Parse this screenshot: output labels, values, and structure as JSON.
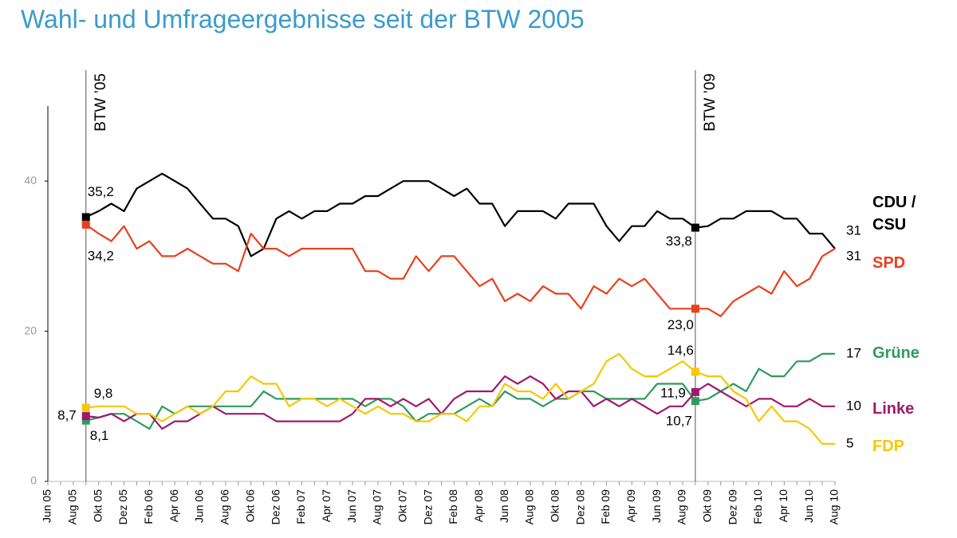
{
  "chart_data": {
    "type": "line",
    "title": "Wahl- und Umfrageergebnisse seit der BTW 2005",
    "categories": [
      "Jun 05",
      null,
      "Aug 05",
      null,
      "Okt 05",
      null,
      "Dez 05",
      null,
      "Feb 06",
      null,
      "Apr 06",
      null,
      "Jun 06",
      null,
      "Aug 06",
      null,
      "Okt 06",
      null,
      "Dez 06",
      null,
      "Feb 07",
      null,
      "Apr 07",
      null,
      "Jun 07",
      null,
      "Aug 07",
      null,
      "Okt 07",
      null,
      "Dez 07",
      null,
      "Feb 08",
      null,
      "Apr 08",
      null,
      "Jun 08",
      null,
      "Aug 08",
      null,
      "Okt 08",
      null,
      "Dez 08",
      null,
      "Feb 09",
      null,
      "Apr 09",
      null,
      "Jun 09",
      null,
      "Aug 09",
      null,
      "Okt 09",
      null,
      "Dez 09",
      null,
      "Feb 10",
      null,
      "Apr 10",
      null,
      "Jun 10",
      null,
      "Aug 10"
    ],
    "ylim": [
      0,
      50
    ],
    "yticks": [
      0,
      20,
      40
    ],
    "events": [
      {
        "label": "BTW ’05",
        "at": 3
      },
      {
        "label": "BTW ’09",
        "at": 51
      }
    ],
    "series": [
      {
        "name": "CDU / CSU",
        "color": "#000000",
        "values": [
          null,
          null,
          null,
          35.2,
          36,
          37,
          36,
          39,
          40,
          41,
          40,
          39,
          37,
          35,
          35,
          34,
          30,
          31,
          35,
          36,
          35,
          36,
          36,
          37,
          37,
          38,
          38,
          39,
          40,
          40,
          40,
          39,
          38,
          39,
          37,
          37,
          34,
          36,
          36,
          36,
          35,
          37,
          37,
          37,
          34,
          32,
          34,
          34,
          36,
          35,
          35,
          33.8,
          34,
          35,
          35,
          36,
          36,
          36,
          35,
          35,
          33,
          33,
          31
        ],
        "value_labels": [
          null,
          null,
          null,
          "35,2",
          null,
          null,
          null,
          null,
          null,
          null,
          null,
          null,
          null,
          null,
          null,
          null,
          null,
          null,
          null,
          null,
          null,
          null,
          null,
          null,
          null,
          null,
          null,
          null,
          null,
          null,
          null,
          null,
          null,
          null,
          null,
          null,
          null,
          null,
          null,
          null,
          null,
          null,
          null,
          null,
          null,
          null,
          null,
          null,
          null,
          null,
          null,
          "33,8",
          null,
          null,
          null,
          null,
          null,
          null,
          null,
          null,
          null,
          null,
          "31"
        ]
      },
      {
        "name": "SPD",
        "color": "#e8401c",
        "values": [
          null,
          null,
          null,
          34.2,
          33,
          32,
          34,
          31,
          32,
          30,
          30,
          31,
          30,
          29,
          29,
          28,
          33,
          31,
          31,
          30,
          31,
          31,
          31,
          31,
          31,
          28,
          28,
          27,
          27,
          30,
          28,
          30,
          30,
          28,
          26,
          27,
          24,
          25,
          24,
          26,
          25,
          25,
          23,
          26,
          25,
          27,
          26,
          27,
          25,
          23,
          23,
          23.0,
          23,
          22,
          24,
          25,
          26,
          25,
          28,
          26,
          27,
          30,
          31
        ],
        "value_labels": [
          null,
          null,
          null,
          "34,2",
          null,
          null,
          null,
          null,
          null,
          null,
          null,
          null,
          null,
          null,
          null,
          null,
          null,
          null,
          null,
          null,
          null,
          null,
          null,
          null,
          null,
          null,
          null,
          null,
          null,
          null,
          null,
          null,
          null,
          null,
          null,
          null,
          null,
          null,
          null,
          null,
          null,
          null,
          null,
          null,
          null,
          null,
          null,
          null,
          null,
          null,
          null,
          "23,0",
          null,
          null,
          null,
          null,
          null,
          null,
          null,
          null,
          null,
          null,
          "31"
        ]
      },
      {
        "name": "Grüne",
        "color": "#2e9b5e",
        "values": [
          null,
          null,
          null,
          8.1,
          8.5,
          9,
          9,
          8,
          7,
          10,
          9,
          10,
          10,
          10,
          10,
          10,
          10,
          12,
          11,
          11,
          11,
          11,
          11,
          11,
          11,
          10,
          11,
          11,
          10,
          8,
          9,
          9,
          9,
          10,
          11,
          10,
          12,
          11,
          11,
          10,
          11,
          11,
          12,
          12,
          11,
          11,
          11,
          11,
          13,
          13,
          13,
          10.7,
          11,
          12,
          13,
          12,
          15,
          14,
          14,
          16,
          16,
          17,
          17
        ],
        "value_labels": [
          null,
          null,
          null,
          "8,1",
          null,
          null,
          null,
          null,
          null,
          null,
          null,
          null,
          null,
          null,
          null,
          null,
          null,
          null,
          null,
          null,
          null,
          null,
          null,
          null,
          null,
          null,
          null,
          null,
          null,
          null,
          null,
          null,
          null,
          null,
          null,
          null,
          null,
          null,
          null,
          null,
          null,
          null,
          null,
          null,
          null,
          null,
          null,
          null,
          null,
          null,
          null,
          "10,7",
          null,
          null,
          null,
          null,
          null,
          null,
          null,
          null,
          null,
          null,
          "17"
        ]
      },
      {
        "name": "Linke",
        "color": "#a0186e",
        "values": [
          null,
          null,
          null,
          8.7,
          8.5,
          9,
          8,
          9,
          9,
          7,
          8,
          8,
          9,
          10,
          9,
          9,
          9,
          9,
          8,
          8,
          8,
          8,
          8,
          8,
          9,
          11,
          11,
          10,
          11,
          10,
          11,
          9,
          11,
          12,
          12,
          12,
          14,
          13,
          14,
          13,
          11,
          12,
          12,
          10,
          11,
          10,
          11,
          10,
          9,
          10,
          10,
          11.9,
          13,
          12,
          11,
          10,
          11,
          11,
          10,
          10,
          11,
          10,
          10
        ],
        "value_labels": [
          null,
          null,
          null,
          "8,7",
          null,
          null,
          null,
          null,
          null,
          null,
          null,
          null,
          null,
          null,
          null,
          null,
          null,
          null,
          null,
          null,
          null,
          null,
          null,
          null,
          null,
          null,
          null,
          null,
          null,
          null,
          null,
          null,
          null,
          null,
          null,
          null,
          null,
          null,
          null,
          null,
          null,
          null,
          null,
          null,
          null,
          null,
          null,
          null,
          null,
          null,
          null,
          "11,9",
          null,
          null,
          null,
          null,
          null,
          null,
          null,
          null,
          null,
          null,
          "10"
        ]
      },
      {
        "name": "FDP",
        "color": "#f5c800",
        "values": [
          null,
          null,
          null,
          9.8,
          10,
          10,
          10,
          9,
          9,
          8,
          9,
          10,
          9,
          10,
          12,
          12,
          14,
          13,
          13,
          10,
          11,
          11,
          10,
          11,
          10,
          9,
          10,
          9,
          9,
          8,
          8,
          9,
          9,
          8,
          10,
          10,
          13,
          12,
          12,
          11,
          13,
          11,
          12,
          13,
          16,
          17,
          15,
          14,
          14,
          15,
          16,
          14.6,
          14,
          14,
          12,
          11,
          8,
          10,
          8,
          8,
          7,
          5,
          5
        ],
        "value_labels": [
          null,
          null,
          null,
          "9,8",
          null,
          null,
          null,
          null,
          null,
          null,
          null,
          null,
          null,
          null,
          null,
          null,
          null,
          null,
          null,
          null,
          null,
          null,
          null,
          null,
          null,
          null,
          null,
          null,
          null,
          null,
          null,
          null,
          null,
          null,
          null,
          null,
          null,
          null,
          null,
          null,
          null,
          null,
          null,
          null,
          null,
          null,
          null,
          null,
          null,
          null,
          null,
          "14,6",
          null,
          null,
          null,
          null,
          null,
          null,
          null,
          null,
          null,
          null,
          "5"
        ]
      }
    ]
  }
}
